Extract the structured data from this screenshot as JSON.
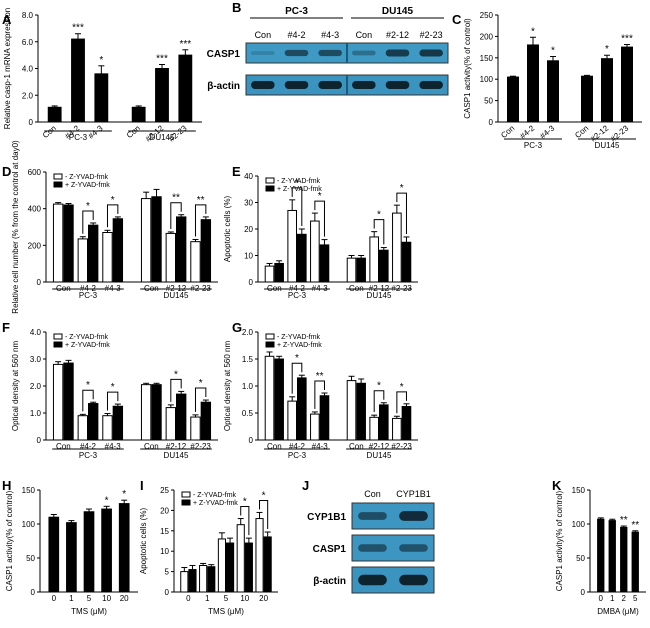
{
  "chart_data": [
    {
      "panel": "A",
      "type": "bar",
      "ylabel": "Relative casp-1 mRNA expression",
      "ylim": [
        0,
        8
      ],
      "yticks": [
        "0",
        "2.0",
        "4.0",
        "6.0",
        "8.0"
      ],
      "categories": [
        "Con",
        "#4-2",
        "#4-3",
        "Con",
        "#2-12",
        "#2-23"
      ],
      "values": [
        1.1,
        6.2,
        3.6,
        1.1,
        4.0,
        5.0
      ],
      "errors": [
        0.1,
        0.4,
        0.6,
        0.1,
        0.3,
        0.4
      ],
      "sig": [
        "",
        "***",
        "*",
        "",
        "***",
        "***"
      ],
      "groups": [
        {
          "label": "PC-3",
          "span": [
            0,
            2
          ]
        },
        {
          "label": "DU145",
          "span": [
            3,
            5
          ]
        }
      ]
    },
    {
      "panel": "C",
      "type": "bar",
      "ylabel": "CASP1 activity(% of control)",
      "ylim": [
        0,
        250
      ],
      "yticks": [
        "0",
        "50",
        "100",
        "150",
        "200",
        "250"
      ],
      "categories": [
        "Con",
        "#4-2",
        "#4-3",
        "Con",
        "#2-12",
        "#2-23"
      ],
      "values": [
        105,
        180,
        143,
        107,
        148,
        175
      ],
      "errors": [
        2,
        18,
        10,
        2,
        8,
        6
      ],
      "sig": [
        "",
        "*",
        "*",
        "",
        "*",
        "***"
      ],
      "groups": [
        {
          "label": "PC-3",
          "span": [
            0,
            2
          ]
        },
        {
          "label": "DU145",
          "span": [
            3,
            5
          ]
        }
      ]
    },
    {
      "panel": "D",
      "type": "bar",
      "ylabel": "Relative cell number (% from the control at day0)",
      "ylim": [
        0,
        600
      ],
      "yticks": [
        "0",
        "200",
        "400",
        "600"
      ],
      "categories": [
        "Con",
        "#4-2",
        "#4-3",
        "Con",
        "#2-12",
        "#2-23"
      ],
      "legend": [
        "- Z-YVAD-fmk",
        "+ Z-YVAD-fmk"
      ],
      "series": [
        {
          "name": "- Z-YVAD-fmk",
          "values": [
            425,
            235,
            270,
            455,
            265,
            220
          ],
          "errors": [
            8,
            12,
            12,
            35,
            8,
            12
          ]
        },
        {
          "name": "+ Z-YVAD-fmk",
          "values": [
            420,
            310,
            345,
            465,
            355,
            340
          ],
          "errors": [
            8,
            12,
            10,
            40,
            12,
            15
          ]
        }
      ],
      "brackets": [
        {
          "index": 1,
          "label": "*"
        },
        {
          "index": 2,
          "label": "*"
        },
        {
          "index": 4,
          "label": "**"
        },
        {
          "index": 5,
          "label": "**"
        }
      ],
      "groups": [
        {
          "label": "PC-3",
          "span": [
            0,
            2
          ]
        },
        {
          "label": "DU145",
          "span": [
            3,
            5
          ]
        }
      ]
    },
    {
      "panel": "E",
      "type": "bar",
      "ylabel": "Apoptotic cells (%)",
      "ylim": [
        0,
        40
      ],
      "yticks": [
        "0",
        "10",
        "20",
        "30",
        "40"
      ],
      "categories": [
        "Con",
        "#4-2",
        "#4-3",
        "Con",
        "#2-12",
        "#2-23"
      ],
      "legend": [
        "- Z-YVAD-fmk",
        "+ Z-YVAD-fmk"
      ],
      "series": [
        {
          "name": "- Z-YVAD-fmk",
          "values": [
            6,
            27,
            23,
            9,
            17,
            26
          ],
          "errors": [
            1,
            4,
            3,
            1,
            2,
            3
          ]
        },
        {
          "name": "+ Z-YVAD-fmk",
          "values": [
            7,
            18,
            14,
            9,
            12,
            15
          ],
          "errors": [
            1,
            2,
            2,
            1,
            1,
            2
          ]
        }
      ],
      "brackets": [
        {
          "index": 1,
          "label": "*"
        },
        {
          "index": 2,
          "label": "*"
        },
        {
          "index": 4,
          "label": "*"
        },
        {
          "index": 5,
          "label": "*"
        }
      ],
      "groups": [
        {
          "label": "PC-3",
          "span": [
            0,
            2
          ]
        },
        {
          "label": "DU145",
          "span": [
            3,
            5
          ]
        }
      ]
    },
    {
      "panel": "F",
      "type": "bar",
      "ylabel": "Optical density at 560 nm",
      "ylim": [
        0,
        4
      ],
      "yticks": [
        "0",
        "1.0",
        "2.0",
        "3.0",
        "4.0"
      ],
      "categories": [
        "Con",
        "#4-2",
        "#4-3",
        "Con",
        "#2-12",
        "#2-23"
      ],
      "legend": [
        "- Z-YVAD-fmk",
        "+ Z-YVAD-fmk"
      ],
      "series": [
        {
          "name": "- Z-YVAD-fmk",
          "values": [
            2.8,
            0.9,
            0.9,
            2.05,
            1.2,
            0.85
          ],
          "errors": [
            0.1,
            0.05,
            0.08,
            0.05,
            0.1,
            0.08
          ]
        },
        {
          "name": "+ Z-YVAD-fmk",
          "values": [
            2.85,
            1.35,
            1.25,
            2.05,
            1.7,
            1.4
          ],
          "errors": [
            0.1,
            0.05,
            0.08,
            0.05,
            0.1,
            0.08
          ]
        }
      ],
      "brackets": [
        {
          "index": 1,
          "label": "*"
        },
        {
          "index": 2,
          "label": "*"
        },
        {
          "index": 4,
          "label": "*"
        },
        {
          "index": 5,
          "label": "*"
        }
      ],
      "groups": [
        {
          "label": "PC-3",
          "span": [
            0,
            2
          ]
        },
        {
          "label": "DU145",
          "span": [
            3,
            5
          ]
        }
      ]
    },
    {
      "panel": "G",
      "type": "bar",
      "ylabel": "Optical density at 560 nm",
      "ylim": [
        0,
        2
      ],
      "yticks": [
        "0",
        "0.5",
        "1.0",
        "1.5",
        "2.0"
      ],
      "categories": [
        "Con",
        "#4-2",
        "#4-3",
        "Con",
        "#2-12",
        "#2-23"
      ],
      "legend": [
        "- Z-YVAD-fmk",
        "+ Z-YVAD-fmk"
      ],
      "series": [
        {
          "name": "- Z-YVAD-fmk",
          "values": [
            1.55,
            0.72,
            0.48,
            1.1,
            0.42,
            0.4
          ],
          "errors": [
            0.08,
            0.08,
            0.04,
            0.08,
            0.04,
            0.04
          ]
        },
        {
          "name": "+ Z-YVAD-fmk",
          "values": [
            1.5,
            1.15,
            0.82,
            1.05,
            0.65,
            0.62
          ],
          "errors": [
            0.05,
            0.05,
            0.05,
            0.08,
            0.04,
            0.05
          ]
        }
      ],
      "brackets": [
        {
          "index": 1,
          "label": "*"
        },
        {
          "index": 2,
          "label": "**"
        },
        {
          "index": 4,
          "label": "*"
        },
        {
          "index": 5,
          "label": "*"
        }
      ],
      "groups": [
        {
          "label": "PC-3",
          "span": [
            0,
            2
          ]
        },
        {
          "label": "DU145",
          "span": [
            3,
            5
          ]
        }
      ]
    },
    {
      "panel": "H",
      "type": "bar",
      "ylabel": "CASP1 activity(% of control)",
      "ylim": [
        0,
        150
      ],
      "yticks": [
        "0",
        "50",
        "100",
        "150"
      ],
      "categories": [
        "0",
        "1",
        "5",
        "10",
        "20"
      ],
      "values": [
        110,
        102,
        118,
        122,
        130
      ],
      "errors": [
        4,
        3,
        4,
        4,
        5
      ],
      "sig": [
        "",
        "",
        "",
        "*",
        "*"
      ],
      "xlabel": "TMS (μM)"
    },
    {
      "panel": "I",
      "type": "bar",
      "ylabel": "Apoptotic cells (%)",
      "ylim": [
        0,
        25
      ],
      "yticks": [
        "0",
        "5",
        "10",
        "15",
        "20",
        "25"
      ],
      "categories": [
        "0",
        "1",
        "5",
        "10",
        "20"
      ],
      "legend": [
        "- Z-YVAD-fmk",
        "+ Z-YVAD-fmk"
      ],
      "series": [
        {
          "name": "- Z-YVAD-fmk",
          "values": [
            5,
            6.5,
            13,
            16.5,
            18
          ],
          "errors": [
            1,
            0.5,
            1.5,
            1.5,
            1.5
          ]
        },
        {
          "name": "+ Z-YVAD-fmk",
          "values": [
            5.5,
            6.2,
            12,
            12,
            13.5
          ],
          "errors": [
            1,
            0.5,
            1.2,
            1.2,
            1.2
          ]
        }
      ],
      "brackets": [
        {
          "index": 3,
          "label": "*"
        },
        {
          "index": 4,
          "label": "*"
        }
      ],
      "xlabel": "TMS (μM)"
    },
    {
      "panel": "K",
      "type": "bar",
      "ylabel": "CASP1 activity(% of control)",
      "ylim": [
        0,
        150
      ],
      "yticks": [
        "0",
        "50",
        "100",
        "150"
      ],
      "categories": [
        "0",
        "1",
        "2",
        "5"
      ],
      "values": [
        107,
        105,
        95,
        88
      ],
      "errors": [
        2,
        2,
        2,
        2
      ],
      "sig": [
        "",
        "",
        "**",
        "**"
      ],
      "xlabel": "DMBA (μM)"
    }
  ],
  "blots": {
    "B": {
      "panel": "B",
      "groups": [
        {
          "label": "PC-3"
        },
        {
          "label": "DU145"
        }
      ],
      "lanes": [
        "Con",
        "#4-2",
        "#4-3",
        "Con",
        "#2-12",
        "#2-23"
      ],
      "rows": [
        {
          "label": "CASP1",
          "intensity": [
            0.05,
            0.6,
            0.6,
            0.25,
            0.75,
            0.8
          ],
          "background": "#3e9ac4"
        },
        {
          "label": "β-actin",
          "intensity": [
            1,
            1,
            1,
            1,
            1,
            1
          ],
          "background": "#3b93c0"
        }
      ]
    },
    "J": {
      "panel": "J",
      "lanes": [
        "Con",
        "CYP1B1"
      ],
      "rows": [
        {
          "label": "CYP1B1",
          "intensity": [
            0.55,
            0.9
          ],
          "background": "#3d95c2"
        },
        {
          "label": "CASP1",
          "intensity": [
            0.5,
            0.5
          ],
          "background": "#3d95c2"
        },
        {
          "label": "β-actin",
          "intensity": [
            1,
            1
          ],
          "background": "#3b93c0"
        }
      ]
    }
  }
}
